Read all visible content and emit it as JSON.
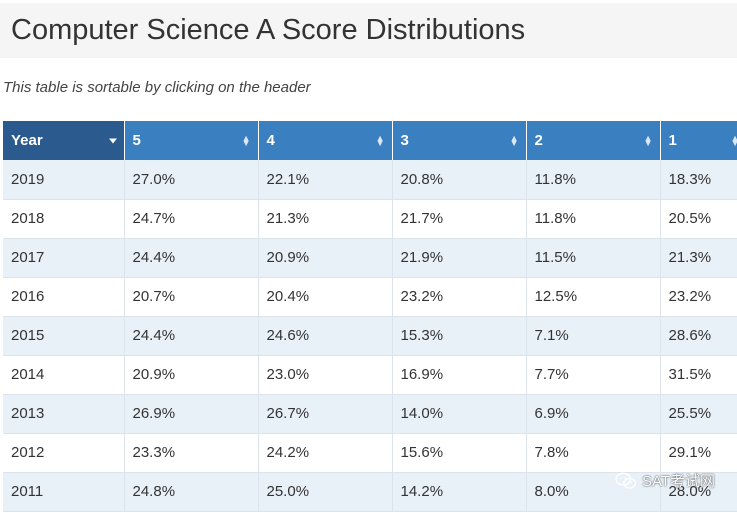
{
  "page": {
    "title": "Computer Science A Score Distributions",
    "subtitle": "This table is sortable by clicking on the header"
  },
  "table": {
    "headers": [
      "Year",
      "5",
      "4",
      "3",
      "2",
      "1"
    ],
    "active_sort_column": "Year",
    "rows": [
      [
        "2019",
        "27.0%",
        "22.1%",
        "20.8%",
        "11.8%",
        "18.3%"
      ],
      [
        "2018",
        "24.7%",
        "21.3%",
        "21.7%",
        "11.8%",
        "20.5%"
      ],
      [
        "2017",
        "24.4%",
        "20.9%",
        "21.9%",
        "11.5%",
        "21.3%"
      ],
      [
        "2016",
        "20.7%",
        "20.4%",
        "23.2%",
        "12.5%",
        "23.2%"
      ],
      [
        "2015",
        "24.4%",
        "24.6%",
        "15.3%",
        "7.1%",
        "28.6%"
      ],
      [
        "2014",
        "20.9%",
        "23.0%",
        "16.9%",
        "7.7%",
        "31.5%"
      ],
      [
        "2013",
        "26.9%",
        "26.7%",
        "14.0%",
        "6.9%",
        "25.5%"
      ],
      [
        "2012",
        "23.3%",
        "24.2%",
        "15.6%",
        "7.8%",
        "29.1%"
      ],
      [
        "2011",
        "24.8%",
        "25.0%",
        "14.2%",
        "8.0%",
        "28.0%"
      ]
    ]
  },
  "colors": {
    "header_bg": "#3a7fc0",
    "header_active_bg": "#2a5a8e",
    "row_alt_bg": "#e8f0f8"
  },
  "watermark": {
    "icon": "wechat-icon",
    "text": "SAT考试网"
  }
}
